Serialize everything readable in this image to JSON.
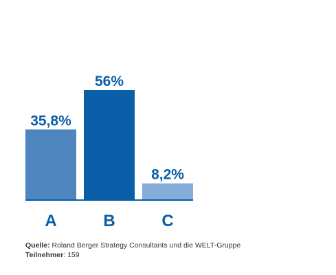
{
  "chart_data": {
    "type": "bar",
    "categories": [
      "A",
      "B",
      "C"
    ],
    "values": [
      35.8,
      56,
      8.2
    ],
    "value_labels": [
      "35,8%",
      "56%",
      "8,2%"
    ],
    "bar_colors": [
      "#4f86bf",
      "#0a5ea8",
      "#86acd8"
    ],
    "text_color": "#0a5ea8",
    "ylim": [
      0,
      56
    ],
    "grid": false,
    "legend": "none"
  },
  "footer": {
    "source_label": "Quelle:",
    "source_text": " Roland Berger Strategy Consultants und die WELT-Gruppe",
    "participants_label": "Teilnehmer",
    "participants_text": ": 159"
  }
}
